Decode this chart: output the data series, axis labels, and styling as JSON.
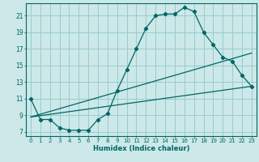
{
  "xlabel": "Humidex (Indice chaleur)",
  "bg_color": "#cce8e8",
  "grid_color": "#99cccc",
  "line_color": "#006666",
  "xlim": [
    -0.5,
    23.5
  ],
  "ylim": [
    6.5,
    22.5
  ],
  "xticks": [
    0,
    1,
    2,
    3,
    4,
    5,
    6,
    7,
    8,
    9,
    10,
    11,
    12,
    13,
    14,
    15,
    16,
    17,
    18,
    19,
    20,
    21,
    22,
    23
  ],
  "yticks": [
    7,
    9,
    11,
    13,
    15,
    17,
    19,
    21
  ],
  "main_x": [
    0,
    1,
    2,
    3,
    4,
    5,
    6,
    7,
    8,
    9,
    10,
    11,
    12,
    13,
    14,
    15,
    16,
    17,
    18,
    19,
    20,
    21,
    22,
    23
  ],
  "main_y": [
    11.0,
    8.5,
    8.5,
    7.5,
    7.2,
    7.2,
    7.2,
    8.5,
    9.2,
    12.0,
    14.5,
    17.0,
    19.5,
    21.0,
    21.2,
    21.2,
    22.0,
    21.5,
    19.0,
    17.5,
    16.0,
    15.5,
    13.8,
    12.5
  ],
  "line2_x": [
    0,
    23
  ],
  "line2_y": [
    8.8,
    12.5
  ],
  "line3_x": [
    0,
    23
  ],
  "line3_y": [
    8.8,
    16.5
  ],
  "xlabel_fontsize": 6,
  "tick_fontsize": 5,
  "ytick_fontsize": 5.5
}
